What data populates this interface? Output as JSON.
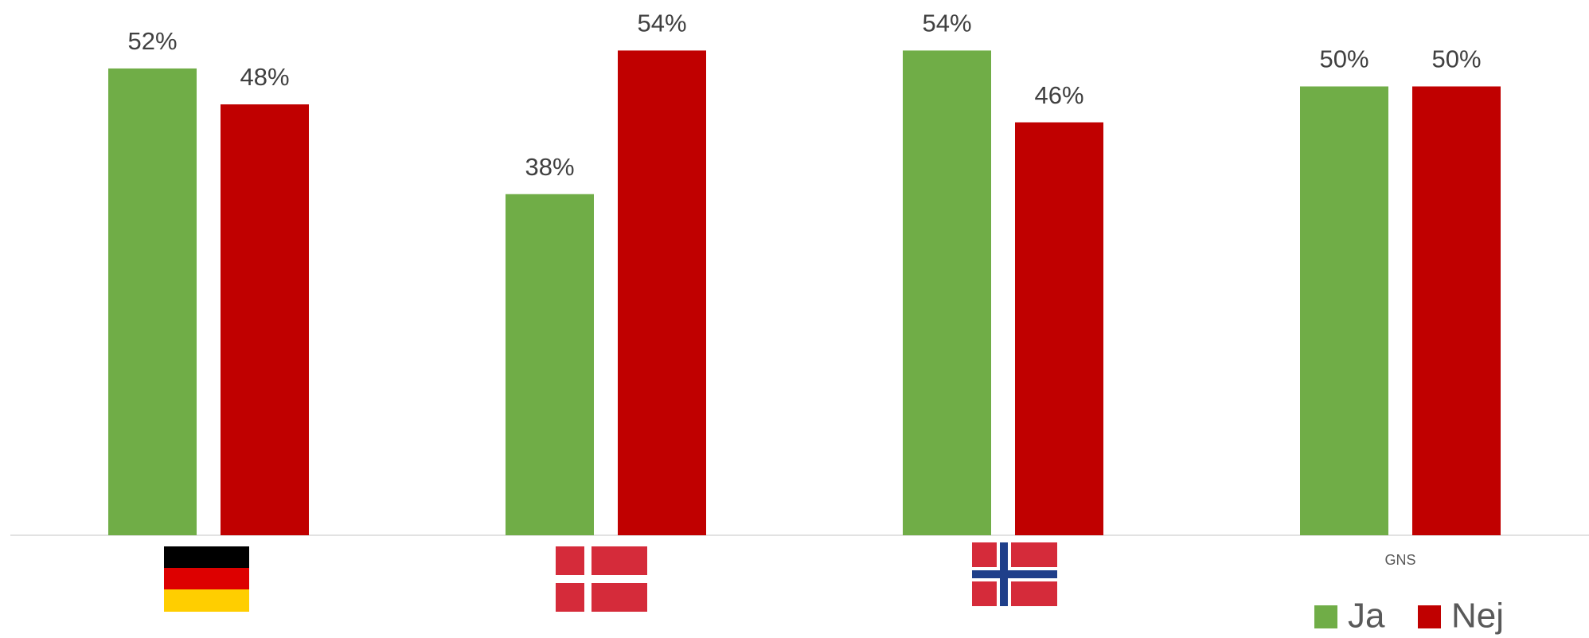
{
  "chart_data": {
    "type": "bar",
    "categories": [
      null,
      null,
      null,
      "GNS"
    ],
    "series": [
      {
        "name": "Ja",
        "color": "#70ad47",
        "values": [
          52,
          38,
          54,
          50
        ],
        "value_labels": [
          "52%",
          "38%",
          "54%",
          "50%"
        ]
      },
      {
        "name": "Nej",
        "color": "#c00000",
        "values": [
          48,
          54,
          46,
          50
        ],
        "value_labels": [
          "48%",
          "54%",
          "46%",
          "50%"
        ]
      }
    ]
  }
}
